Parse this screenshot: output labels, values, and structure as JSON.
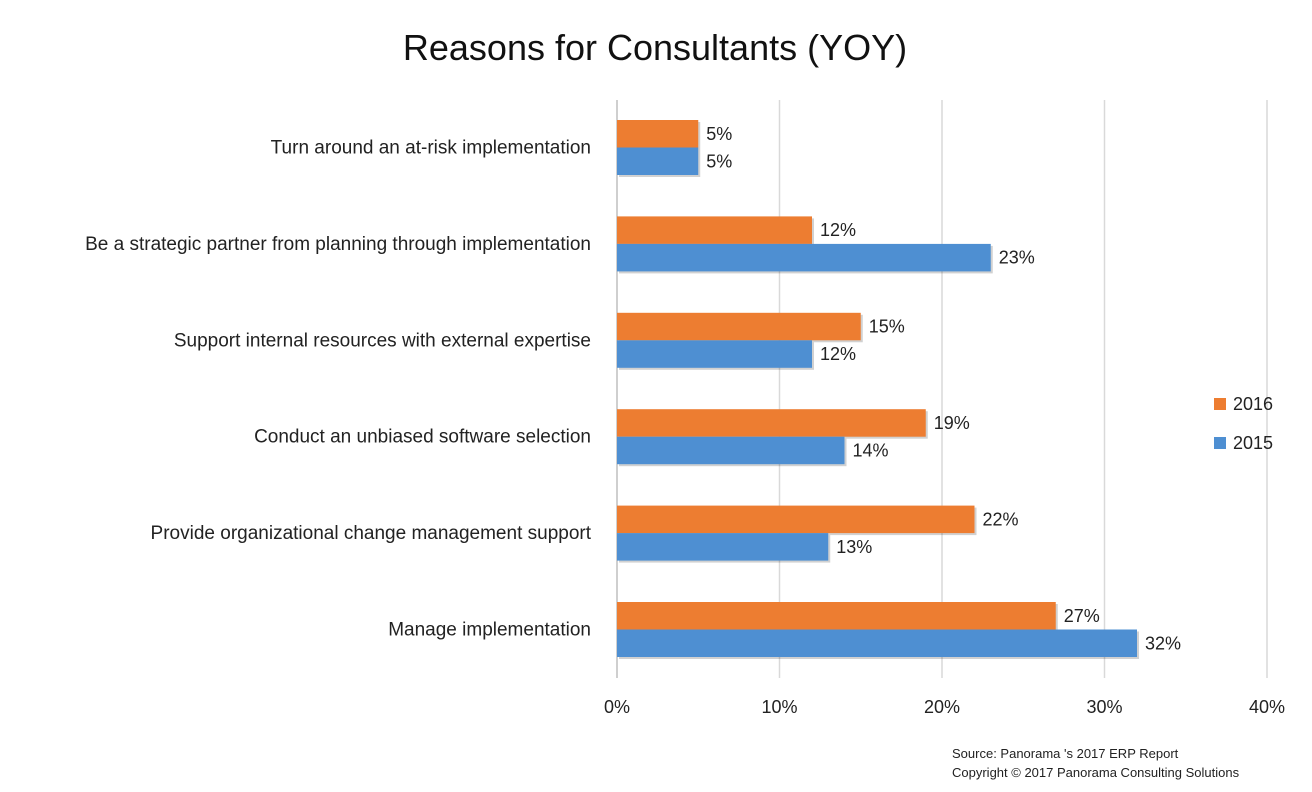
{
  "chart_data": {
    "type": "bar",
    "orientation": "horizontal",
    "title": "Reasons for Consultants (YOY)",
    "categories": [
      "Turn around an at-risk implementation",
      "Be a strategic partner from planning through implementation",
      "Support internal resources with external expertise",
      "Conduct an unbiased software selection",
      "Provide organizational change management support",
      "Manage implementation"
    ],
    "series": [
      {
        "name": "2016",
        "color": "#ED7D31",
        "values": [
          5,
          12,
          15,
          19,
          22,
          27
        ]
      },
      {
        "name": "2015",
        "color": "#4E8FD2",
        "values": [
          5,
          23,
          12,
          14,
          13,
          32
        ]
      }
    ],
    "value_suffix": "%",
    "xlim": [
      0,
      40
    ],
    "xticks": [
      0,
      10,
      20,
      30,
      40
    ],
    "xtick_labels": [
      "0%",
      "10%",
      "20%",
      "30%",
      "40%"
    ],
    "grid": true,
    "legend_position": "right",
    "legend_order": [
      "2016",
      "2015"
    ]
  },
  "footer": {
    "source": "Source: Panorama 's 2017 ERP Report",
    "copyright": "Copyright © 2017 Panorama Consulting Solutions"
  }
}
